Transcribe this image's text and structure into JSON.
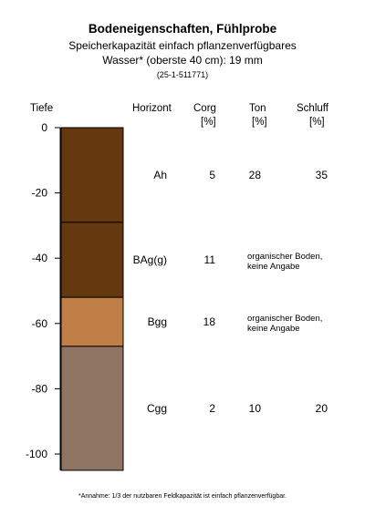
{
  "chart_data": {
    "type": "table",
    "title": "Bodeneigenschaften, Fühlprobe",
    "subtitle_line1": "Speicherkapazität einfach pflanzenverfügbares",
    "subtitle_line2": "Wasser* (oberste 40 cm): 19 mm",
    "sample_id": "(25-1-511771)",
    "ylabel": "Tiefe",
    "ylim": [
      -105,
      0
    ],
    "yticks": [
      0,
      -20,
      -40,
      -60,
      -80,
      -100
    ],
    "columns": {
      "horizont": "Horizont",
      "corg": "Corg",
      "corg_unit": "[%]",
      "ton": "Ton",
      "ton_unit": "[%]",
      "schluff": "Schluff",
      "schluff_unit": "[%]"
    },
    "layers": [
      {
        "horizont": "Ah",
        "top": 0,
        "bottom": -29,
        "color": "#66380f",
        "corg": "5",
        "ton": "28",
        "schluff": "35",
        "note": ""
      },
      {
        "horizont": "BAg(g)",
        "top": -29,
        "bottom": -52,
        "color": "#66380f",
        "corg": "11",
        "ton": "",
        "schluff": "",
        "note": "organischer Boden, keine Angabe"
      },
      {
        "horizont": "Bgg",
        "top": -52,
        "bottom": -67,
        "color": "#c17f48",
        "corg": "18",
        "ton": "",
        "schluff": "",
        "note": "organischer Boden, keine Angabe"
      },
      {
        "horizont": "Cgg",
        "top": -67,
        "bottom": -105,
        "color": "#8f7462",
        "corg": "2",
        "ton": "10",
        "schluff": "20",
        "note": ""
      }
    ]
  },
  "footnote": "*Annahme: 1/3 der nutzbaren Feldkapazität ist einfach pflanzenverfügbar."
}
